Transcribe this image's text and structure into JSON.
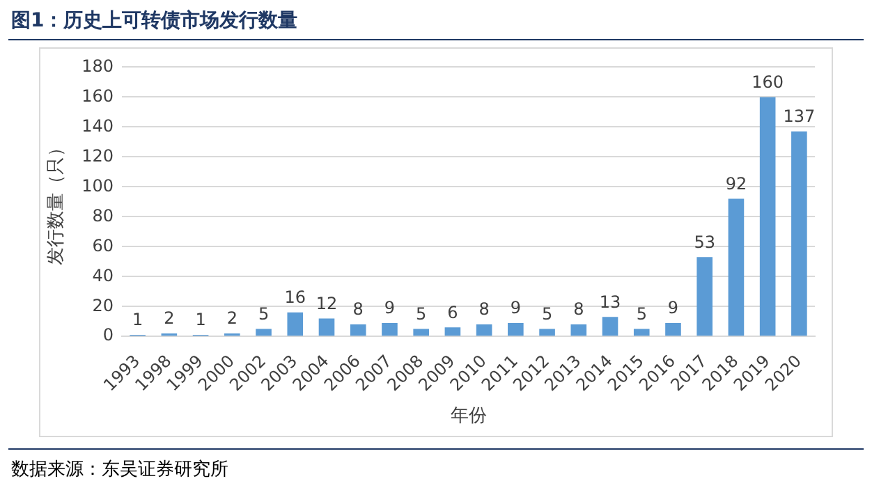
{
  "chart_data": {
    "type": "bar",
    "title": "图1：历史上可转债市场发行数量",
    "xlabel": "年份",
    "ylabel": "发行数量（只）",
    "categories": [
      "1993",
      "1998",
      "1999",
      "2000",
      "2002",
      "2003",
      "2004",
      "2006",
      "2007",
      "2008",
      "2009",
      "2010",
      "2011",
      "2012",
      "2013",
      "2014",
      "2015",
      "2016",
      "2017",
      "2018",
      "2019",
      "2020"
    ],
    "values": [
      1,
      2,
      1,
      2,
      5,
      16,
      12,
      8,
      9,
      5,
      6,
      8,
      9,
      5,
      8,
      13,
      5,
      9,
      53,
      92,
      160,
      137
    ],
    "color": "#5b9bd5",
    "ylim": [
      0,
      180
    ],
    "yticks": [
      0,
      20,
      40,
      60,
      80,
      100,
      120,
      140,
      160,
      180
    ],
    "grid": "y",
    "data_labels": true,
    "legend": false,
    "annotations": [
      "数据来源：东吴证券研究所"
    ]
  }
}
